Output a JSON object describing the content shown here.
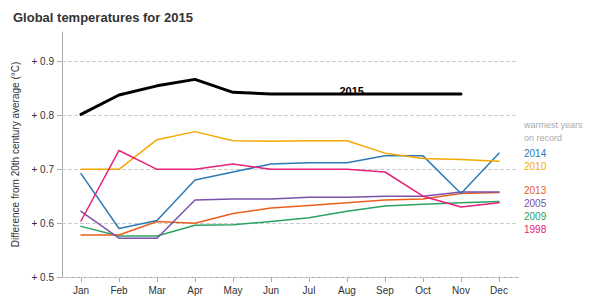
{
  "chart_data": {
    "type": "line",
    "title": "Global temperatures for 2015",
    "ylabel": "Difference from 20th century average (°C)",
    "categories": [
      "Jan",
      "Feb",
      "Mar",
      "Apr",
      "May",
      "Jun",
      "Jul",
      "Aug",
      "Sep",
      "Oct",
      "Nov",
      "Dec"
    ],
    "series": [
      {
        "name": "2009",
        "color": "#2ca25f",
        "values": [
          0.594,
          0.576,
          0.576,
          0.596,
          0.597,
          0.603,
          0.61,
          0.622,
          0.632,
          0.635,
          0.638,
          0.64
        ]
      },
      {
        "name": "2013",
        "color": "#e8601c",
        "values": [
          0.578,
          0.578,
          0.603,
          0.6,
          0.618,
          0.628,
          0.633,
          0.638,
          0.643,
          0.645,
          0.655,
          0.657
        ]
      },
      {
        "name": "2005",
        "color": "#7b52ab",
        "values": [
          0.622,
          0.572,
          0.572,
          0.643,
          0.645,
          0.645,
          0.648,
          0.648,
          0.65,
          0.65,
          0.658,
          0.658
        ]
      },
      {
        "name": "2014",
        "color": "#2c7bb6",
        "values": [
          0.692,
          0.59,
          0.605,
          0.68,
          0.695,
          0.71,
          0.712,
          0.712,
          0.725,
          0.725,
          0.655,
          0.73
        ]
      },
      {
        "name": "2010",
        "color": "#f5a800",
        "values": [
          0.7,
          0.7,
          0.755,
          0.77,
          0.753,
          0.752,
          0.753,
          0.753,
          0.73,
          0.72,
          0.718,
          0.715
        ]
      },
      {
        "name": "1998",
        "color": "#e8217a",
        "values": [
          0.604,
          0.735,
          0.7,
          0.7,
          0.71,
          0.7,
          0.7,
          0.7,
          0.695,
          0.65,
          0.63,
          0.638
        ]
      },
      {
        "name": "2015",
        "color": "#000000",
        "values": [
          0.802,
          0.838,
          0.855,
          0.867,
          0.843,
          0.84,
          0.84,
          0.84,
          0.84,
          0.84,
          0.84,
          null
        ]
      }
    ],
    "ylim": [
      0.5,
      0.955
    ],
    "yticks": [
      {
        "value": 0.5,
        "label": "+ 0.5"
      },
      {
        "value": 0.6,
        "label": "+ 0.6"
      },
      {
        "value": 0.7,
        "label": "+ 0.7"
      },
      {
        "value": 0.8,
        "label": "+ 0.8"
      },
      {
        "value": 0.9,
        "label": "+ 0.9"
      }
    ],
    "grid": true,
    "annotations": [
      {
        "text": "2015",
        "x": 6.8,
        "y": 0.845,
        "color": "#000000"
      },
      {
        "text": "2014",
        "y": 0.73,
        "color": "#2c7bb6"
      },
      {
        "text": "2010",
        "y": 0.715,
        "color": "#f5a800"
      },
      {
        "text": "2013",
        "y": 0.661,
        "color": "#e8601c"
      },
      {
        "text": "2005",
        "y": 0.651,
        "color": "#7b52ab"
      },
      {
        "text": "2009",
        "y": 0.638,
        "color": "#2ca25f"
      },
      {
        "text": "1998",
        "y": 0.626,
        "color": "#e8217a"
      },
      {
        "text": "warmest years\non record",
        "y": 0.795,
        "color": "#aaaaaa"
      }
    ]
  }
}
